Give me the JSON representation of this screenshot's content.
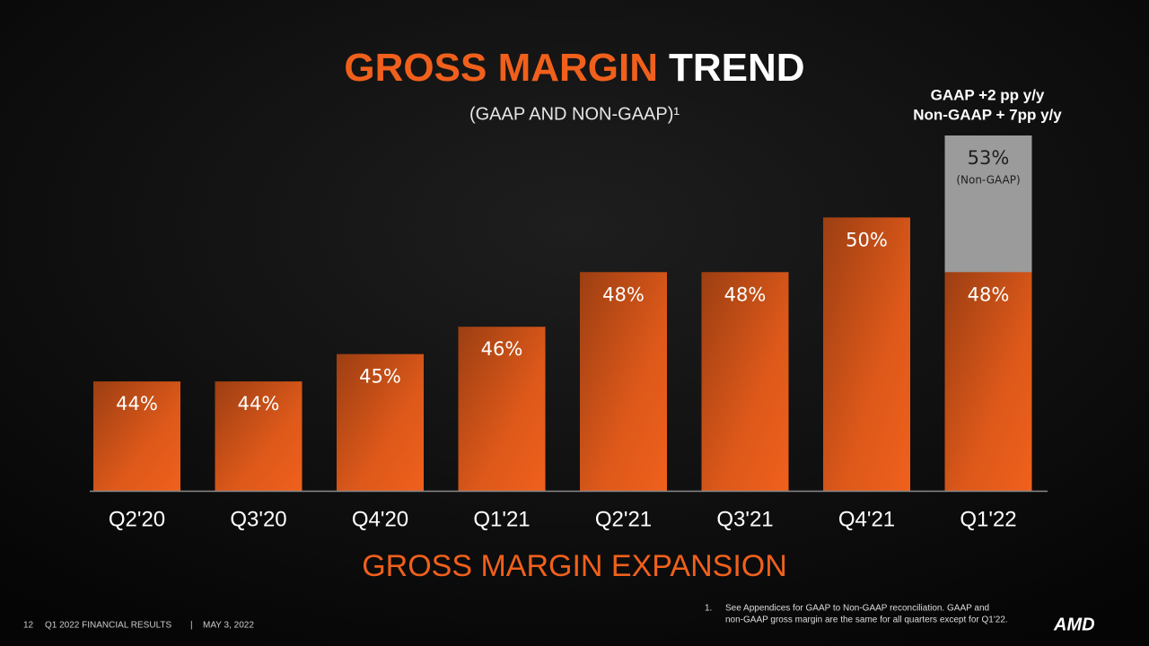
{
  "chart_data": {
    "type": "bar",
    "title_accent": "GROSS MARGIN",
    "title": "TREND",
    "subtitle": "(GAAP AND NON-GAAP)¹",
    "annotation": [
      "GAAP +2 pp y/y",
      "Non-GAAP + 7pp y/y"
    ],
    "x_label": "GROSS MARGIN EXPANSION",
    "categories": [
      "Q2'20",
      "Q3'20",
      "Q4'20",
      "Q1'21",
      "Q2'21",
      "Q3'21",
      "Q4'21",
      "Q1'22"
    ],
    "series": [
      {
        "color": "#f0601c",
        "values": [
          44,
          44,
          45,
          46,
          48,
          48,
          50,
          48
        ],
        "value_labels": [
          "44%",
          "44%",
          "45%",
          "46%",
          "48%",
          "48%",
          "50%",
          "48%"
        ]
      },
      {
        "name": "(Non-GAAP)",
        "color": "#9b9b9b",
        "values": [
          null,
          null,
          null,
          null,
          null,
          null,
          null,
          53
        ],
        "value_labels": [
          null,
          null,
          null,
          null,
          null,
          null,
          null,
          "53%"
        ]
      }
    ],
    "ylim": [
      40,
      53
    ],
    "footnote": {
      "marker": "1.",
      "lines": [
        "See Appendices for GAAP to Non-GAAP reconciliation. GAAP and",
        "non-GAAP gross margin are the same for all quarters except for Q1'22."
      ]
    }
  },
  "footer": {
    "page": "12",
    "report": "Q1 2022 FINANCIAL RESULTS",
    "separator": "|",
    "date": "MAY 3, 2022",
    "logo": "AMD"
  }
}
